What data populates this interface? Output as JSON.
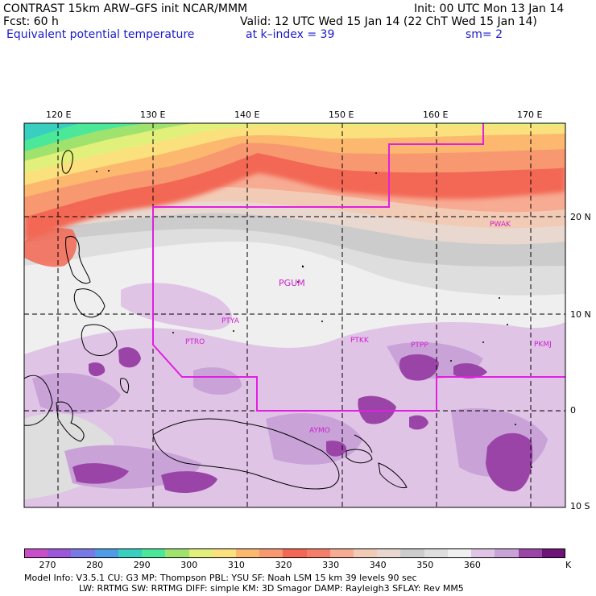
{
  "header": {
    "line1_left": "CONTRAST 15km ARW–GFS init   NCAR/MMM",
    "line1_right": "Init: 00 UTC Mon 13 Jan 14",
    "fcst": "Fcst:   60 h",
    "valid": "Valid: 12 UTC Wed 15 Jan 14 (22 ChT Wed 15 Jan 14)",
    "field": "Equivalent potential temperature",
    "level": "at k–index =  39",
    "sm": "sm= 2"
  },
  "axes": {
    "lon_labels": [
      "120 E",
      "130 E",
      "140 E",
      "150 E",
      "160 E",
      "170 E"
    ],
    "lat_labels": [
      "20 N",
      "10 N",
      "0",
      "10 S"
    ]
  },
  "stations": [
    "PGUM",
    "PTYA",
    "PTRO",
    "PTKK",
    "PTPP",
    "PKMJ",
    "PWAK",
    "AYMO"
  ],
  "colorbar": {
    "unit": "K",
    "tick_labels": [
      "270",
      "280",
      "290",
      "300",
      "310",
      "320",
      "330",
      "340",
      "350",
      "360"
    ],
    "colors": [
      "#c84fc8",
      "#9b57d9",
      "#7878e6",
      "#4f9be6",
      "#38cfc0",
      "#4be89a",
      "#9fe26e",
      "#e1f07a",
      "#fbe07e",
      "#fbb86e",
      "#f89870",
      "#f36754",
      "#f47e6a",
      "#f7ab93",
      "#f2cbb6",
      "#e8d8cf",
      "#cccccc",
      "#dedede",
      "#efefef",
      "#e0c4e6",
      "#c9a2d8",
      "#9b44a8",
      "#6e1478"
    ]
  },
  "footer": {
    "line1": "Model Info: V3.5.1    CU: G3       MP: Thompson      PBL: YSU       SF: Noah LSM     15 km    39 levels    90 sec",
    "line2": "LW: RRTMG    SW: RRTMG   DIFF: simple KM: 3D Smagor DAMP: Rayleigh3   SFLAY: Rev MM5"
  }
}
